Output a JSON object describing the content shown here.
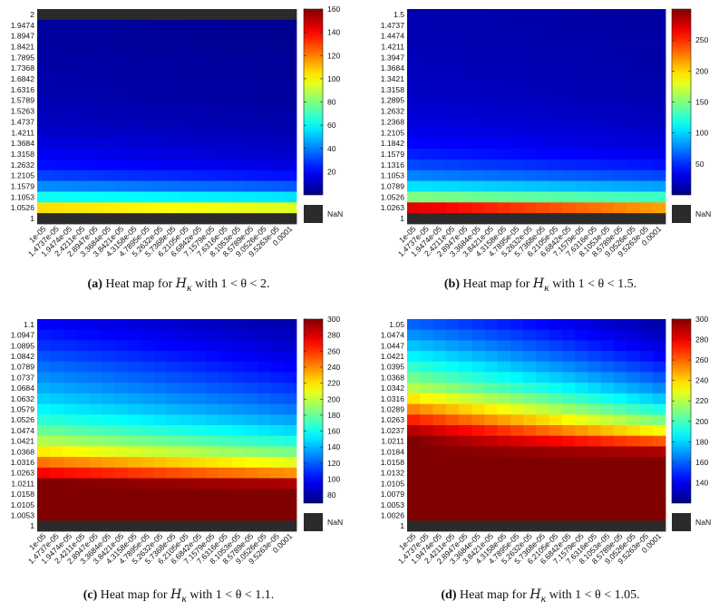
{
  "panels": [
    {
      "caption": {
        "tag": "(a)",
        "prefix": " Heat map for ",
        "math_symbol": "H",
        "math_sub": "κ",
        "suffix": " with 1 < θ < 2."
      },
      "chart_data": {
        "type": "heatmap",
        "x_ticks": [
          "1e-05",
          "1.4737e-05",
          "1.9474e-05",
          "2.4211e-05",
          "2.8947e-05",
          "3.3684e-05",
          "3.8421e-05",
          "4.3158e-05",
          "4.7895e-05",
          "5.2632e-05",
          "5.7368e-05",
          "6.2105e-05",
          "6.6842e-05",
          "7.1579e-05",
          "7.6316e-05",
          "8.1053e-05",
          "8.5789e-05",
          "9.0526e-05",
          "9.5263e-05",
          "0.0001"
        ],
        "y_ticks": [
          "2",
          "1.9474",
          "1.8947",
          "1.8421",
          "1.7895",
          "1.7368",
          "1.6842",
          "1.6316",
          "1.5789",
          "1.5263",
          "1.4737",
          "1.4211",
          "1.3684",
          "1.3158",
          "1.2632",
          "1.2105",
          "1.1579",
          "1.1053",
          "1.0526",
          "1"
        ],
        "nan_rows": [
          0,
          19
        ],
        "row_values": [
          null,
          5,
          5,
          5,
          6,
          6,
          7,
          7,
          8,
          9,
          10,
          12,
          15,
          18,
          22,
          30,
          42,
          62,
          105,
          null
        ],
        "row_values_end": [
          null,
          3,
          3,
          3,
          4,
          4,
          4,
          5,
          5,
          6,
          7,
          8,
          10,
          12,
          15,
          22,
          34,
          56,
          95,
          null
        ],
        "colorbar": {
          "min": 0,
          "max": 160,
          "ticks": [
            20,
            40,
            60,
            80,
            100,
            120,
            140,
            160
          ]
        },
        "nan_label": "NaN"
      }
    },
    {
      "caption": {
        "tag": "(b)",
        "prefix": " Heat map for ",
        "math_symbol": "H",
        "math_sub": "κ",
        "suffix": " with 1 < θ < 1.5."
      },
      "chart_data": {
        "type": "heatmap",
        "x_ticks": [
          "1e-05",
          "1.4737e-05",
          "1.9474e-05",
          "2.4211e-05",
          "2.8947e-05",
          "3.3684e-05",
          "3.8421e-05",
          "4.3158e-05",
          "4.7895e-05",
          "5.2632e-05",
          "5.7368e-05",
          "6.2105e-05",
          "6.6842e-05",
          "7.1579e-05",
          "7.6316e-05",
          "8.1053e-05",
          "8.5789e-05",
          "9.0526e-05",
          "9.5263e-05",
          "0.0001"
        ],
        "y_ticks": [
          "1.5",
          "1.4737",
          "1.4474",
          "1.4211",
          "1.3947",
          "1.3684",
          "1.3421",
          "1.3158",
          "1.2895",
          "1.2632",
          "1.2368",
          "1.2105",
          "1.1842",
          "1.1579",
          "1.1316",
          "1.1053",
          "1.0789",
          "1.0526",
          "1.0263",
          "1"
        ],
        "nan_rows": [
          19
        ],
        "row_values": [
          14,
          15,
          15,
          16,
          17,
          18,
          19,
          20,
          22,
          25,
          28,
          32,
          38,
          46,
          58,
          76,
          105,
          150,
          270,
          null
        ],
        "row_values_end": [
          10,
          10,
          11,
          11,
          12,
          12,
          13,
          14,
          15,
          17,
          19,
          22,
          26,
          32,
          42,
          58,
          85,
          130,
          215,
          null
        ],
        "colorbar": {
          "min": 0,
          "max": 300,
          "ticks": [
            50,
            100,
            150,
            200,
            250
          ]
        },
        "nan_label": "NaN"
      }
    },
    {
      "caption": {
        "tag": "(c)",
        "prefix": " Heat map for ",
        "math_symbol": "H",
        "math_sub": "κ",
        "suffix": " with 1 < θ < 1.1."
      },
      "chart_data": {
        "type": "heatmap",
        "x_ticks": [
          "1e-05",
          "1.4737e-05",
          "1.9474e-05",
          "2.4211e-05",
          "2.8947e-05",
          "3.3684e-05",
          "3.8421e-05",
          "4.3158e-05",
          "4.7895e-05",
          "5.2632e-05",
          "5.7368e-05",
          "6.2105e-05",
          "6.6842e-05",
          "7.1579e-05",
          "7.6316e-05",
          "8.1053e-05",
          "8.5789e-05",
          "9.0526e-05",
          "9.5263e-05",
          "0.0001"
        ],
        "y_ticks": [
          "1.1",
          "1.0947",
          "1.0895",
          "1.0842",
          "1.0789",
          "1.0737",
          "1.0684",
          "1.0632",
          "1.0579",
          "1.0526",
          "1.0474",
          "1.0421",
          "1.0368",
          "1.0316",
          "1.0263",
          "1.0211",
          "1.0158",
          "1.0105",
          "1.0053",
          "1"
        ],
        "nan_rows": [
          19
        ],
        "row_values": [
          98,
          104,
          110,
          117,
          124,
          131,
          138,
          146,
          155,
          166,
          180,
          196,
          218,
          245,
          272,
          300,
          300,
          300,
          300,
          null
        ],
        "row_values_end": [
          80,
          84,
          88,
          93,
          98,
          104,
          111,
          118,
          126,
          136,
          148,
          163,
          183,
          208,
          238,
          290,
          300,
          300,
          300,
          null
        ],
        "colorbar": {
          "min": 70,
          "max": 300,
          "ticks": [
            80,
            100,
            120,
            140,
            160,
            180,
            200,
            220,
            240,
            260,
            280,
            300
          ]
        },
        "nan_label": "NaN"
      }
    },
    {
      "caption": {
        "tag": "(d)",
        "prefix": " Heat map for ",
        "math_symbol": "H",
        "math_sub": "κ",
        "suffix": " with 1 < θ < 1.05."
      },
      "chart_data": {
        "type": "heatmap",
        "x_ticks": [
          "1e-05",
          "1.4737e-05",
          "1.9474e-05",
          "2.4211e-05",
          "2.8947e-05",
          "3.3684e-05",
          "3.8421e-05",
          "4.3158e-05",
          "4.7895e-05",
          "5.2632e-05",
          "5.7368e-05",
          "6.2105e-05",
          "6.6842e-05",
          "7.1579e-05",
          "7.6316e-05",
          "8.1053e-05",
          "8.5789e-05",
          "9.0526e-05",
          "9.5263e-05",
          "0.0001"
        ],
        "y_ticks": [
          "1.05",
          "1.0474",
          "1.0447",
          "1.0421",
          "1.0395",
          "1.0368",
          "1.0342",
          "1.0316",
          "1.0289",
          "1.0263",
          "1.0237",
          "1.0211",
          "1.0184",
          "1.0158",
          "1.0132",
          "1.0105",
          "1.0079",
          "1.0053",
          "1.0026",
          "1"
        ],
        "nan_rows": [
          19
        ],
        "row_values": [
          160,
          168,
          177,
          186,
          196,
          207,
          220,
          236,
          254,
          272,
          290,
          300,
          300,
          300,
          300,
          300,
          300,
          300,
          300,
          null
        ],
        "row_values_end": [
          128,
          132,
          137,
          143,
          150,
          158,
          167,
          178,
          192,
          210,
          232,
          262,
          292,
          300,
          300,
          300,
          300,
          300,
          300,
          null
        ],
        "colorbar": {
          "min": 120,
          "max": 300,
          "ticks": [
            140,
            160,
            180,
            200,
            220,
            240,
            260,
            280,
            300
          ]
        },
        "nan_label": "NaN"
      }
    }
  ]
}
